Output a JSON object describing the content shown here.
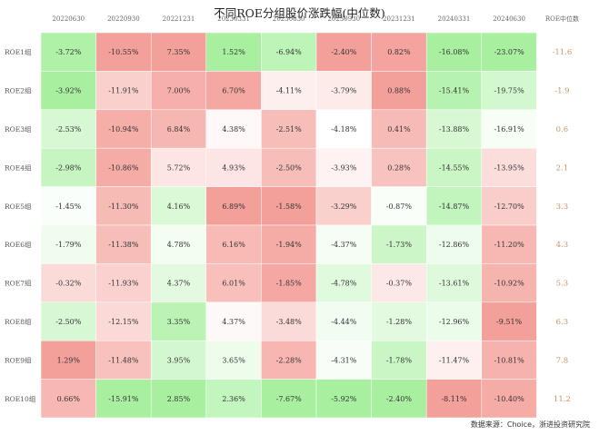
{
  "chart_data": {
    "type": "heatmap",
    "title": "不同ROE分组股价涨跌幅(中位数)",
    "columns": [
      "20220630",
      "20220930",
      "20221231",
      "20230331",
      "20230630",
      "20230930",
      "20231231",
      "20240331",
      "20240630"
    ],
    "rows": [
      "ROE1组",
      "ROE2组",
      "ROE3组",
      "ROE4组",
      "ROE5组",
      "ROE6组",
      "ROE7组",
      "ROE8组",
      "ROE9组",
      "ROE10组"
    ],
    "values": [
      [
        -3.72,
        -10.55,
        7.35,
        1.52,
        -6.94,
        -2.4,
        0.82,
        -16.08,
        -23.07
      ],
      [
        -3.92,
        -11.91,
        7.0,
        6.7,
        -4.11,
        -3.79,
        0.88,
        -15.41,
        -19.75
      ],
      [
        -2.53,
        -10.94,
        6.84,
        4.38,
        -2.51,
        -4.18,
        0.41,
        -13.88,
        -16.91
      ],
      [
        -2.98,
        -10.86,
        5.72,
        4.93,
        -2.5,
        -3.93,
        0.28,
        -14.55,
        -13.95
      ],
      [
        -1.45,
        -11.3,
        4.16,
        6.89,
        -1.58,
        -3.29,
        -0.87,
        -14.87,
        -12.7
      ],
      [
        -1.79,
        -11.38,
        4.78,
        6.16,
        -1.94,
        -4.37,
        -1.73,
        -12.86,
        -11.2
      ],
      [
        -0.32,
        -11.93,
        4.37,
        6.01,
        -1.85,
        -4.78,
        -0.37,
        -13.61,
        -10.92
      ],
      [
        -2.5,
        -12.15,
        3.35,
        4.37,
        -3.48,
        -4.44,
        -1.28,
        -12.96,
        -9.51
      ],
      [
        1.29,
        -11.48,
        3.95,
        3.65,
        -2.28,
        -4.31,
        -1.78,
        -11.47,
        -10.81
      ],
      [
        0.66,
        -15.91,
        2.85,
        2.36,
        -7.67,
        -5.92,
        -2.4,
        -8.11,
        -10.4
      ]
    ],
    "value_suffix": "%",
    "median_label": "ROE中位数",
    "roe_median": [
      -11.6,
      -1.9,
      0.6,
      2.1,
      3.3,
      4.3,
      5.3,
      6.3,
      7.8,
      11.2
    ],
    "colors": {
      "high": "#f4a09a",
      "mid": "#ffffff",
      "low": "#a8f0a0",
      "median_text": "#c8946a"
    }
  },
  "source": "数据来源：Choice，浙进投资研究院"
}
